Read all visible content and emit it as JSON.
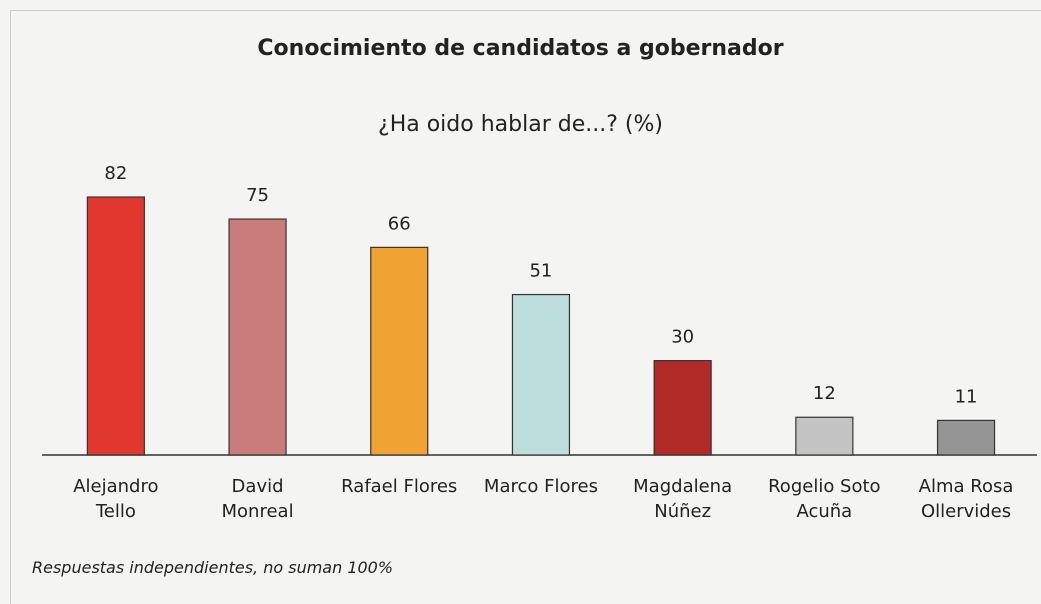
{
  "chart_data": {
    "type": "bar",
    "title": "Conocimiento de candidatos a gobernador",
    "subtitle": "¿Ha oido hablar de...? (%)",
    "categories": [
      "Alejandro\nTello",
      "David\nMonreal",
      "Rafael Flores",
      "Marco Flores",
      "Magdalena\nNúñez",
      "Rogelio Soto\nAcuña",
      "Alma Rosa\nOllervides"
    ],
    "values": [
      82,
      75,
      66,
      51,
      30,
      12,
      11
    ],
    "colors": [
      "#e0382e",
      "#c97c7a",
      "#f0a232",
      "#bcdedc",
      "#b02a28",
      "#c4c4c4",
      "#959595"
    ],
    "note": "Respuestas independientes, no suman 100%"
  }
}
